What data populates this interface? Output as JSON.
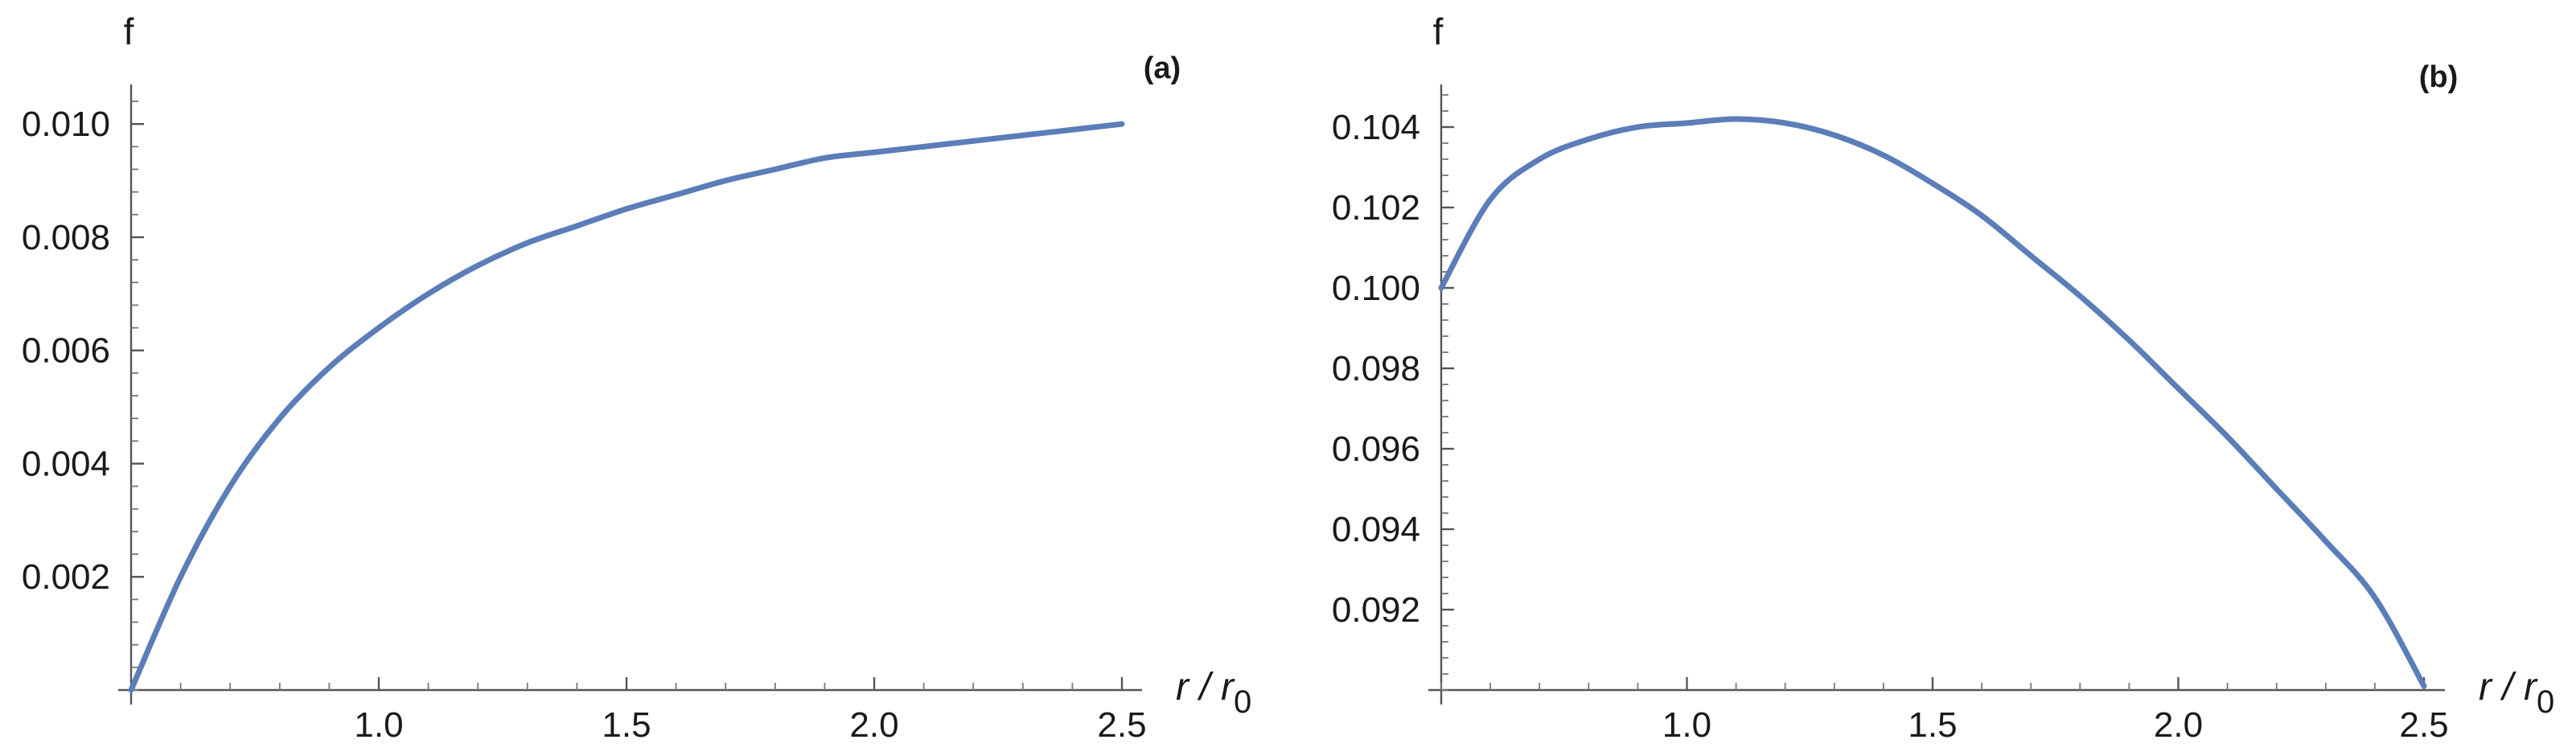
{
  "chart_data": [
    {
      "type": "line",
      "panel_label": "(a)",
      "ylabel": "f",
      "xlabel": {
        "main": "r / r",
        "subscript": "0"
      },
      "xlim": [
        0.5,
        2.5
      ],
      "ylim": [
        0.0,
        0.0105
      ],
      "x_ticks": [
        {
          "value": 1.0,
          "label": "1.0"
        },
        {
          "value": 1.5,
          "label": "1.5"
        },
        {
          "value": 2.0,
          "label": "2.0"
        },
        {
          "value": 2.5,
          "label": "2.5"
        }
      ],
      "y_ticks": [
        {
          "value": 0.002,
          "label": "0.002"
        },
        {
          "value": 0.004,
          "label": "0.004"
        },
        {
          "value": 0.006,
          "label": "0.006"
        },
        {
          "value": 0.008,
          "label": "0.008"
        },
        {
          "value": 0.01,
          "label": "0.010"
        }
      ],
      "x_minor_step": 0.1,
      "y_minor_step": 0.0004,
      "line_color": "#5b7db8",
      "series": [
        {
          "x": [
            0.5,
            0.6,
            0.7,
            0.8,
            0.9,
            1.0,
            1.1,
            1.2,
            1.3,
            1.4,
            1.5,
            1.6,
            1.7,
            1.8,
            1.9,
            2.0,
            2.1,
            2.2,
            2.3,
            2.4,
            2.5
          ],
          "y": [
            0.0,
            0.002,
            0.0036,
            0.0048,
            0.0057,
            0.0064,
            0.007,
            0.0075,
            0.0079,
            0.0082,
            0.0085,
            0.00875,
            0.009,
            0.0092,
            0.0094,
            0.0095,
            0.0096,
            0.0097,
            0.0098,
            0.0099,
            0.01
          ]
        }
      ]
    },
    {
      "type": "line",
      "panel_label": "(b)",
      "ylabel": "f",
      "xlabel": {
        "main": "r / r",
        "subscript": "0"
      },
      "xlim": [
        0.5,
        2.5
      ],
      "ylim": [
        0.09,
        0.1048
      ],
      "x_ticks": [
        {
          "value": 1.0,
          "label": "1.0"
        },
        {
          "value": 1.5,
          "label": "1.5"
        },
        {
          "value": 2.0,
          "label": "2.0"
        },
        {
          "value": 2.5,
          "label": "2.5"
        }
      ],
      "y_ticks": [
        {
          "value": 0.092,
          "label": "0.092"
        },
        {
          "value": 0.094,
          "label": "0.094"
        },
        {
          "value": 0.096,
          "label": "0.096"
        },
        {
          "value": 0.098,
          "label": "0.098"
        },
        {
          "value": 0.1,
          "label": "0.100"
        },
        {
          "value": 0.102,
          "label": "0.102"
        },
        {
          "value": 0.104,
          "label": "0.104"
        }
      ],
      "x_minor_step": 0.1,
      "y_minor_step": 0.0004,
      "line_color": "#5b7db8",
      "series": [
        {
          "x": [
            0.5,
            0.6,
            0.7,
            0.8,
            0.9,
            1.0,
            1.1,
            1.2,
            1.3,
            1.4,
            1.5,
            1.6,
            1.7,
            1.8,
            1.9,
            2.0,
            2.1,
            2.2,
            2.3,
            2.4,
            2.5
          ],
          "y": [
            0.1,
            0.1022,
            0.1032,
            0.1037,
            0.104,
            0.1041,
            0.1042,
            0.1041,
            0.1038,
            0.1033,
            0.1026,
            0.1018,
            0.1008,
            0.0998,
            0.0987,
            0.0975,
            0.0963,
            0.095,
            0.0937,
            0.0923,
            0.0901
          ]
        }
      ]
    }
  ]
}
